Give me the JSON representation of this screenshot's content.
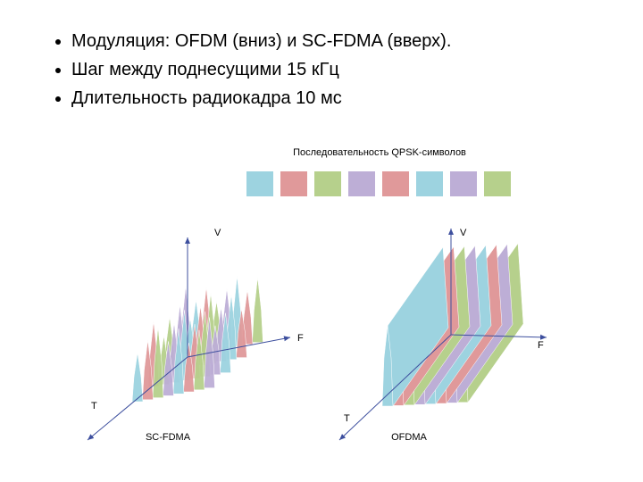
{
  "bullets": [
    "Модуляция: OFDM (вниз) и SC-FDMA (вверх).",
    "Шаг между поднесущими 15 кГц",
    "Длительность радиокадра 10 мс"
  ],
  "diagram": {
    "sequence_label": "Последовательность QPSK-символов",
    "left": {
      "axis_v": "V",
      "axis_f": "F",
      "axis_t": "T",
      "label": "SC-FDMA"
    },
    "right": {
      "axis_v": "V",
      "axis_f": "F",
      "axis_t": "T",
      "label": "OFDMA"
    }
  }
}
